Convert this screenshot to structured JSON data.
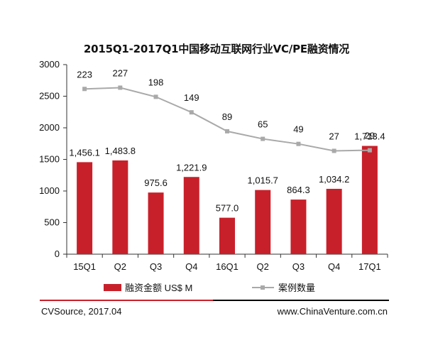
{
  "title": "2015Q1-2017Q1中国移动互联网行业VC/PE融资情况",
  "source_text": "CVSource, 2017.04",
  "website_text": "www.ChinaVenture.com.cn",
  "colors": {
    "bar": "#c8202a",
    "line": "#a9a9a9",
    "axis": "#333333",
    "accent_rule": "#c8202a"
  },
  "chart_data": {
    "type": "bar",
    "categories": [
      "15Q1",
      "Q2",
      "Q3",
      "Q4",
      "16Q1",
      "Q2",
      "Q3",
      "Q4",
      "17Q1"
    ],
    "ylim": [
      0,
      3000
    ],
    "yticks": [
      0,
      500,
      1000,
      1500,
      2000,
      2500,
      3000
    ],
    "grid": false,
    "legend_position": "bottom",
    "series": [
      {
        "name": "融资金额 US$ M",
        "type": "bar",
        "values": [
          1456.1,
          1483.8,
          975.6,
          1221.9,
          577.0,
          1015.7,
          864.3,
          1034.2,
          1713.4
        ],
        "labels": [
          "1,456.1",
          "1,483.8",
          "975.6",
          "1,221.9",
          "577.0",
          "1,015.7",
          "864.3",
          "1,034.2",
          "1,713.4"
        ]
      },
      {
        "name": "案例数量",
        "type": "line",
        "values": [
          223,
          227,
          198,
          149,
          89,
          65,
          49,
          27,
          29
        ]
      }
    ]
  }
}
